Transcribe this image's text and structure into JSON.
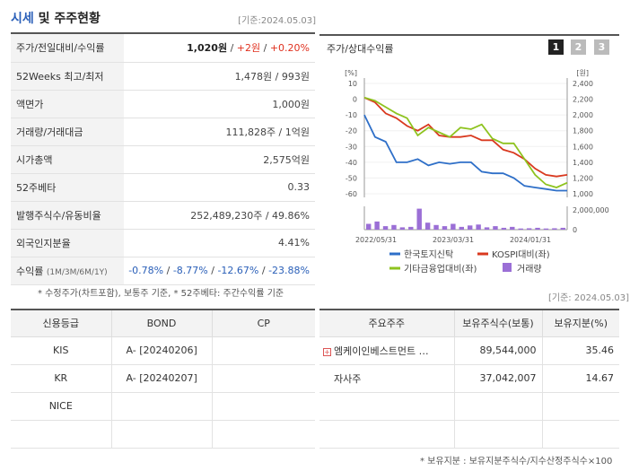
{
  "header": {
    "title_part1": "시세",
    "title_part2": " 및 주주현황",
    "date": "[기준:2024.05.03]"
  },
  "info": {
    "price_label": "주가/전일대비/수익률",
    "price": "1,020원",
    "change": "+2원",
    "change_pct": "+0.20%",
    "w52_label": "52Weeks 최고/최저",
    "w52_value": "1,478원 / 993원",
    "par_label": "액면가",
    "par_value": "1,000원",
    "volume_label": "거래량/거래대금",
    "volume_value": "111,828주 / 1억원",
    "mcap_label": "시가총액",
    "mcap_value": "2,575억원",
    "beta_label": "52주베타",
    "beta_value": "0.33",
    "shares_label": "발행주식수/유동비율",
    "shares_value": "252,489,230주 / 49.86%",
    "foreign_label": "외국인지분율",
    "foreign_value": "4.41%",
    "return_label": "수익률",
    "return_periods": "(1M/3M/6M/1Y)",
    "return_1m": "-0.78%",
    "return_3m": "-8.77%",
    "return_6m": "-12.67%",
    "return_1y": "-23.88%"
  },
  "note": "* 수정주가(차트포함), 보통주 기준, * 52주베타: 주간수익률 기준",
  "chart_panel": {
    "title": "주가/상대수익률",
    "tabs": [
      "1",
      "2",
      "3"
    ],
    "date": "[기준: 2024.05.03]"
  },
  "chart_data": {
    "type": "line",
    "left_unit": "[%]",
    "right_unit": "[원]",
    "left_ticks": [
      "10",
      "0",
      "-10",
      "-20",
      "-30",
      "-40",
      "-50",
      "-60"
    ],
    "right_ticks": [
      "2,400",
      "2,200",
      "2,000",
      "1,800",
      "1,600",
      "1,400",
      "1,200",
      "1,000"
    ],
    "volume_tick": "2,000,000",
    "volume_zero": "0",
    "x_labels": [
      "2022/05/31",
      "2023/03/31",
      "2024/01/31"
    ],
    "ylim_left": [
      -60,
      10
    ],
    "series": [
      {
        "name": "한국토지신탁",
        "color": "#2e6fc8",
        "values": [
          -10,
          -24,
          -27,
          -40,
          -40,
          -38,
          -42,
          -40,
          -41,
          -40,
          -40,
          -46,
          -47,
          -47,
          -50,
          -55,
          -56,
          -57,
          -58,
          -58
        ]
      },
      {
        "name": "KOSPI대비(좌)",
        "color": "#d9391f",
        "values": [
          1,
          -2,
          -9,
          -12,
          -17,
          -20,
          -16,
          -23,
          -24,
          -24,
          -23,
          -26,
          -26,
          -32,
          -34,
          -38,
          -44,
          -48,
          -49,
          -48
        ]
      },
      {
        "name": "기타금융업대비(좌)",
        "color": "#8ec31f",
        "values": [
          1,
          -1,
          -5,
          -9,
          -12,
          -23,
          -18,
          -21,
          -24,
          -18,
          -19,
          -16,
          -25,
          -28,
          -28,
          -38,
          -48,
          -54,
          -56,
          -53
        ]
      }
    ],
    "volume_name": "거래량",
    "volume_color": "#9b6fd6",
    "volume": [
      0.25,
      0.35,
      0.15,
      0.2,
      0.1,
      0.12,
      0.9,
      0.3,
      0.2,
      0.15,
      0.25,
      0.12,
      0.18,
      0.22,
      0.1,
      0.15,
      0.08,
      0.12,
      0.05,
      0.06,
      0.08,
      0.05,
      0.06,
      0.08
    ]
  },
  "credit": {
    "headers": [
      "신용등급",
      "BOND",
      "CP"
    ],
    "rows": [
      [
        "KIS",
        "A-  [20240206]",
        ""
      ],
      [
        "KR",
        "A-  [20240207]",
        ""
      ],
      [
        "NICE",
        "",
        ""
      ],
      [
        "",
        "",
        ""
      ]
    ]
  },
  "holders": {
    "headers": [
      "주요주주",
      "보유주식수(보통)",
      "보유지분(%)"
    ],
    "rows": [
      [
        "엠케이인베스트먼트 …",
        "89,544,000",
        "35.46"
      ],
      [
        "자사주",
        "37,042,007",
        "14.67"
      ],
      [
        "",
        "",
        ""
      ],
      [
        "",
        "",
        ""
      ]
    ]
  },
  "footnote": "* 보유지분 : 보유지분주식수/지수산정주식수×100"
}
